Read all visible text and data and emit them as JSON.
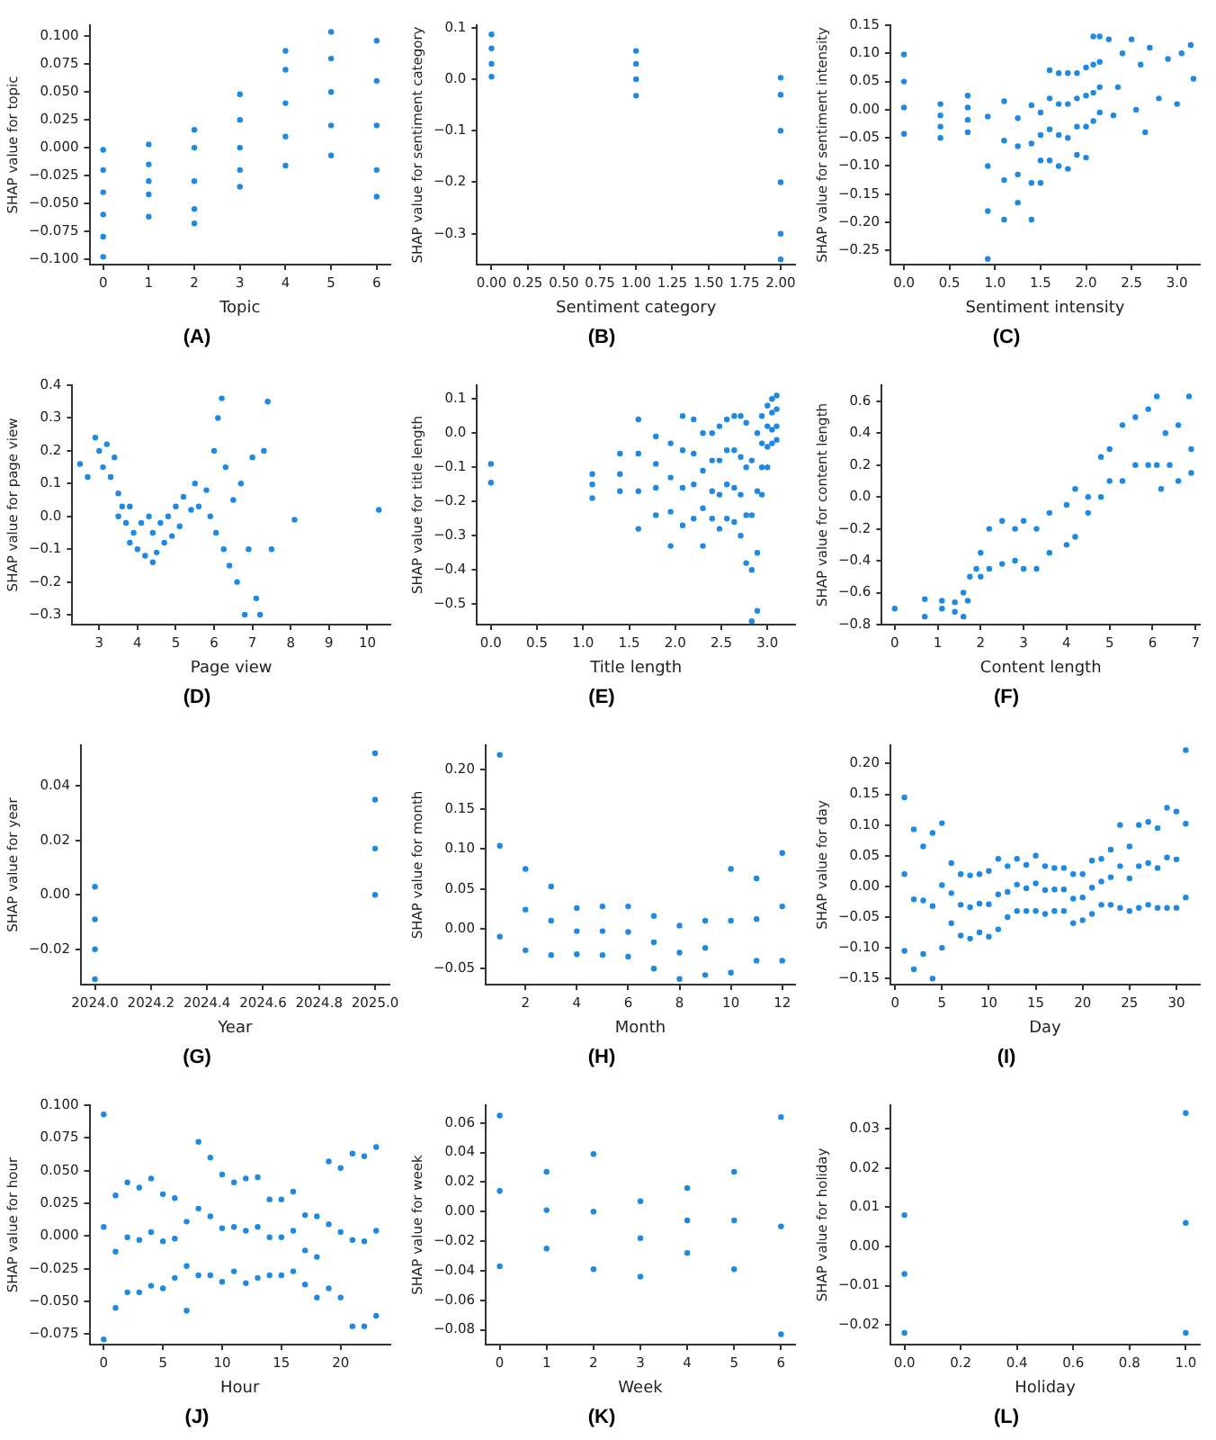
{
  "chart_data": [
    {
      "type": "scatter",
      "title": "(A)",
      "xlabel": "Topic",
      "ylabel": "SHAP value for topic",
      "color": "#1e88e5",
      "marker": "circle",
      "grid": false,
      "x": [
        0,
        0,
        0,
        0,
        0,
        0,
        1,
        1,
        1,
        1,
        1,
        2,
        2,
        2,
        2,
        2,
        3,
        3,
        3,
        3,
        3,
        4,
        4,
        4,
        4,
        4,
        5,
        5,
        5,
        5,
        5,
        6,
        6,
        6,
        6,
        6
      ],
      "values": [
        -0.098,
        -0.08,
        -0.06,
        -0.04,
        -0.02,
        -0.002,
        -0.062,
        -0.042,
        -0.03,
        -0.015,
        0.003,
        -0.068,
        -0.055,
        -0.03,
        0,
        0.016,
        -0.035,
        -0.02,
        0,
        0.025,
        0.048,
        -0.016,
        0.01,
        0.04,
        0.07,
        0.087,
        -0.007,
        0.02,
        0.05,
        0.08,
        0.104,
        -0.044,
        -0.02,
        0.02,
        0.06,
        0.096
      ],
      "xlim": [
        -0.3,
        6.3
      ],
      "xticks": [
        0,
        1,
        2,
        3,
        4,
        5,
        6
      ],
      "ylim": [
        -0.105,
        0.11
      ],
      "yticks": [
        {
          "value": -0.1,
          "label": "−0.100"
        },
        {
          "value": -0.075,
          "label": "−0.075"
        },
        {
          "value": -0.05,
          "label": "−0.050"
        },
        {
          "value": -0.025,
          "label": "−0.025"
        },
        {
          "value": 0,
          "label": "0.000"
        },
        {
          "value": 0.025,
          "label": "0.025"
        },
        {
          "value": 0.05,
          "label": "0.050"
        },
        {
          "value": 0.075,
          "label": "0.075"
        },
        {
          "value": 0.1,
          "label": "0.100"
        }
      ]
    },
    {
      "type": "scatter",
      "title": "(B)",
      "xlabel": "Sentiment category",
      "ylabel": "SHAP value for sentiment category",
      "color": "#1e88e5",
      "marker": "circle",
      "grid": false,
      "x": [
        0,
        0,
        0,
        0,
        1,
        1,
        1,
        1,
        2,
        2,
        2,
        2,
        2,
        2
      ],
      "values": [
        0.005,
        0.03,
        0.06,
        0.087,
        -0.032,
        0,
        0.03,
        0.055,
        -0.35,
        -0.3,
        -0.2,
        -0.1,
        -0.03,
        0.003
      ],
      "xlim": [
        -0.1,
        2.1
      ],
      "xticks": [
        {
          "value": 0,
          "label": "0.00"
        },
        {
          "value": 0.25,
          "label": "0.25"
        },
        {
          "value": 0.5,
          "label": "0.50"
        },
        {
          "value": 0.75,
          "label": "0.75"
        },
        {
          "value": 1,
          "label": "1.00"
        },
        {
          "value": 1.25,
          "label": "1.25"
        },
        {
          "value": 1.5,
          "label": "1.50"
        },
        {
          "value": 1.75,
          "label": "1.75"
        },
        {
          "value": 2,
          "label": "2.00"
        }
      ],
      "ylim": [
        -0.36,
        0.105
      ],
      "yticks": [
        {
          "value": -0.3,
          "label": "−0.3"
        },
        {
          "value": -0.2,
          "label": "−0.2"
        },
        {
          "value": -0.1,
          "label": "−0.1"
        },
        {
          "value": 0,
          "label": "0.0"
        },
        {
          "value": 0.1,
          "label": "0.1"
        }
      ]
    },
    {
      "type": "scatter",
      "title": "(C)",
      "xlabel": "Sentiment intensity",
      "ylabel": "SHAP value for sentiment intensity",
      "color": "#1e88e5",
      "marker": "circle",
      "grid": false,
      "x": [
        0,
        0,
        0,
        0,
        0.4,
        0.4,
        0.4,
        0.4,
        0.7,
        0.7,
        0.7,
        0.7,
        0.92,
        0.92,
        0.92,
        0.92,
        1.1,
        1.1,
        1.1,
        1.1,
        1.25,
        1.25,
        1.25,
        1.25,
        1.4,
        1.4,
        1.4,
        1.4,
        1.5,
        1.5,
        1.5,
        1.5,
        1.6,
        1.6,
        1.6,
        1.6,
        1.7,
        1.7,
        1.7,
        1.7,
        1.8,
        1.8,
        1.8,
        1.8,
        1.9,
        1.9,
        1.9,
        1.9,
        2.0,
        2.0,
        2.0,
        2.0,
        2.08,
        2.08,
        2.08,
        2.08,
        2.15,
        2.15,
        2.15,
        2.15,
        2.25,
        2.3,
        2.35,
        2.4,
        2.5,
        2.55,
        2.6,
        2.65,
        2.7,
        2.8,
        2.9,
        3.0,
        3.05,
        3.15,
        3.18
      ],
      "values": [
        -0.043,
        0.004,
        0.05,
        0.098,
        -0.05,
        -0.03,
        -0.01,
        0.01,
        -0.04,
        -0.018,
        0.004,
        0.025,
        -0.265,
        -0.18,
        -0.1,
        -0.012,
        -0.195,
        -0.125,
        -0.055,
        0.015,
        -0.165,
        -0.115,
        -0.065,
        -0.015,
        -0.195,
        -0.13,
        -0.06,
        0.008,
        -0.13,
        -0.09,
        -0.045,
        -0.005,
        -0.09,
        -0.035,
        0.02,
        0.07,
        -0.1,
        -0.045,
        0.01,
        0.065,
        -0.105,
        -0.05,
        0.01,
        0.065,
        -0.08,
        -0.03,
        0.02,
        0.065,
        -0.085,
        -0.03,
        0.025,
        0.075,
        -0.02,
        0.03,
        0.08,
        0.13,
        -0.005,
        0.04,
        0.085,
        0.13,
        0.125,
        -0.01,
        0.04,
        0.1,
        0.125,
        0.0,
        0.08,
        -0.04,
        0.11,
        0.02,
        0.09,
        0.01,
        0.1,
        0.115,
        0.055
      ],
      "xlim": [
        -0.15,
        3.25
      ],
      "xticks": [
        {
          "value": 0,
          "label": "0.0"
        },
        {
          "value": 0.5,
          "label": "0.5"
        },
        {
          "value": 1,
          "label": "1.0"
        },
        {
          "value": 1.5,
          "label": "1.5"
        },
        {
          "value": 2,
          "label": "2.0"
        },
        {
          "value": 2.5,
          "label": "2.5"
        },
        {
          "value": 3,
          "label": "3.0"
        }
      ],
      "ylim": [
        -0.275,
        0.15
      ],
      "yticks": [
        {
          "value": -0.25,
          "label": "−0.25"
        },
        {
          "value": -0.2,
          "label": "−0.20"
        },
        {
          "value": -0.15,
          "label": "−0.15"
        },
        {
          "value": -0.1,
          "label": "−0.10"
        },
        {
          "value": -0.05,
          "label": "−0.05"
        },
        {
          "value": 0,
          "label": "0.00"
        },
        {
          "value": 0.05,
          "label": "0.05"
        },
        {
          "value": 0.1,
          "label": "0.10"
        },
        {
          "value": 0.15,
          "label": "0.15"
        }
      ]
    },
    {
      "type": "scatter",
      "title": "(D)",
      "xlabel": "Page view",
      "ylabel": "SHAP value for page view",
      "color": "#1e88e5",
      "marker": "circle",
      "grid": false,
      "x": [
        2.5,
        2.7,
        2.9,
        3.0,
        3.1,
        3.2,
        3.3,
        3.4,
        3.5,
        3.5,
        3.6,
        3.7,
        3.8,
        3.8,
        3.9,
        4.0,
        4.1,
        4.2,
        4.3,
        4.4,
        4.4,
        4.5,
        4.6,
        4.7,
        4.8,
        4.9,
        5.0,
        5.1,
        5.2,
        5.4,
        5.5,
        5.6,
        5.8,
        5.9,
        6.0,
        6.05,
        6.1,
        6.2,
        6.25,
        6.3,
        6.4,
        6.5,
        6.6,
        6.7,
        6.8,
        6.9,
        7.0,
        7.1,
        7.2,
        7.3,
        7.4,
        7.5,
        8.1,
        10.3
      ],
      "values": [
        0.16,
        0.12,
        0.24,
        0.2,
        0.15,
        0.22,
        0.12,
        0.18,
        0.07,
        0.0,
        0.03,
        -0.02,
        0.03,
        -0.08,
        -0.05,
        -0.1,
        -0.02,
        -0.12,
        0.0,
        -0.14,
        -0.05,
        -0.11,
        -0.02,
        -0.08,
        0.0,
        -0.06,
        0.03,
        -0.03,
        0.06,
        0.02,
        0.1,
        0.03,
        0.08,
        0.0,
        0.2,
        -0.05,
        0.3,
        0.36,
        -0.1,
        0.15,
        -0.15,
        0.05,
        -0.2,
        0.1,
        -0.3,
        -0.1,
        0.18,
        -0.25,
        -0.3,
        0.2,
        0.35,
        -0.1,
        -0.01,
        0.02
      ],
      "xlim": [
        2.3,
        10.6
      ],
      "xticks": [
        3,
        4,
        5,
        6,
        7,
        8,
        9,
        10
      ],
      "ylim": [
        -0.33,
        0.4
      ],
      "yticks": [
        {
          "value": -0.3,
          "label": "−0.3"
        },
        {
          "value": -0.2,
          "label": "−0.2"
        },
        {
          "value": -0.1,
          "label": "−0.1"
        },
        {
          "value": 0,
          "label": "0.0"
        },
        {
          "value": 0.1,
          "label": "0.1"
        },
        {
          "value": 0.2,
          "label": "0.2"
        },
        {
          "value": 0.3,
          "label": "0.3"
        },
        {
          "value": 0.4,
          "label": "0.4"
        }
      ]
    },
    {
      "type": "scatter",
      "title": "(E)",
      "xlabel": "Title length",
      "ylabel": "SHAP value for title length",
      "color": "#1e88e5",
      "marker": "circle",
      "grid": false,
      "x": [
        0,
        0,
        1.1,
        1.1,
        1.1,
        1.4,
        1.4,
        1.4,
        1.6,
        1.6,
        1.6,
        1.6,
        1.79,
        1.79,
        1.79,
        1.79,
        1.95,
        1.95,
        1.95,
        1.95,
        2.08,
        2.08,
        2.08,
        2.08,
        2.2,
        2.2,
        2.2,
        2.2,
        2.3,
        2.3,
        2.3,
        2.3,
        2.4,
        2.4,
        2.4,
        2.4,
        2.48,
        2.48,
        2.48,
        2.48,
        2.56,
        2.56,
        2.56,
        2.56,
        2.64,
        2.64,
        2.64,
        2.64,
        2.71,
        2.71,
        2.71,
        2.71,
        2.77,
        2.77,
        2.77,
        2.77,
        2.83,
        2.83,
        2.83,
        2.83,
        2.89,
        2.89,
        2.89,
        2.89,
        2.94,
        2.94,
        2.94,
        2.94,
        3.0,
        3.0,
        3.0,
        3.0,
        3.05,
        3.05,
        3.05,
        3.05,
        3.1,
        3.1,
        3.1,
        3.1
      ],
      "values": [
        -0.09,
        -0.145,
        -0.12,
        -0.19,
        -0.15,
        -0.06,
        -0.17,
        -0.12,
        -0.28,
        -0.17,
        -0.06,
        0.04,
        -0.24,
        -0.16,
        -0.09,
        -0.01,
        -0.33,
        -0.23,
        -0.13,
        -0.03,
        -0.27,
        -0.16,
        -0.05,
        0.05,
        -0.25,
        -0.15,
        -0.06,
        0.04,
        -0.33,
        -0.22,
        -0.11,
        0.0,
        -0.25,
        -0.17,
        -0.08,
        0.0,
        -0.28,
        -0.18,
        -0.08,
        0.02,
        -0.25,
        -0.15,
        -0.05,
        0.04,
        -0.26,
        -0.16,
        -0.05,
        0.05,
        -0.3,
        -0.18,
        -0.07,
        0.05,
        -0.38,
        -0.24,
        -0.1,
        0.03,
        -0.55,
        -0.4,
        -0.24,
        -0.08,
        -0.52,
        -0.35,
        -0.17,
        0.0,
        -0.18,
        -0.1,
        -0.03,
        0.05,
        -0.1,
        -0.04,
        0.02,
        0.08,
        -0.03,
        0.01,
        0.06,
        0.1,
        -0.02,
        0.02,
        0.07,
        0.11
      ],
      "xlim": [
        -0.15,
        3.3
      ],
      "xticks": [
        {
          "value": 0,
          "label": "0.0"
        },
        {
          "value": 0.5,
          "label": "0.5"
        },
        {
          "value": 1,
          "label": "1.0"
        },
        {
          "value": 1.5,
          "label": "1.5"
        },
        {
          "value": 2,
          "label": "2.0"
        },
        {
          "value": 2.5,
          "label": "2.5"
        },
        {
          "value": 3,
          "label": "3.0"
        }
      ],
      "ylim": [
        -0.56,
        0.14
      ],
      "yticks": [
        {
          "value": -0.5,
          "label": "−0.5"
        },
        {
          "value": -0.4,
          "label": "−0.4"
        },
        {
          "value": -0.3,
          "label": "−0.3"
        },
        {
          "value": -0.2,
          "label": "−0.2"
        },
        {
          "value": -0.1,
          "label": "−0.1"
        },
        {
          "value": 0,
          "label": "0.0"
        },
        {
          "value": 0.1,
          "label": "0.1"
        }
      ]
    },
    {
      "type": "scatter",
      "title": "(F)",
      "xlabel": "Content length",
      "ylabel": "SHAP value for content length",
      "color": "#1e88e5",
      "marker": "circle",
      "grid": false,
      "x": [
        0,
        0.7,
        0.7,
        1.1,
        1.1,
        1.4,
        1.4,
        1.6,
        1.6,
        1.7,
        1.75,
        1.9,
        2.0,
        2.0,
        2.2,
        2.2,
        2.5,
        2.5,
        2.8,
        2.8,
        3.0,
        3.0,
        3.3,
        3.3,
        3.6,
        3.6,
        4.0,
        4.0,
        4.2,
        4.2,
        4.5,
        4.5,
        4.8,
        4.8,
        5.0,
        5.0,
        5.3,
        5.3,
        5.6,
        5.6,
        5.9,
        5.9,
        6.1,
        6.1,
        6.2,
        6.3,
        6.4,
        6.6,
        6.6,
        6.85,
        6.9,
        6.9
      ],
      "values": [
        -0.7,
        -0.75,
        -0.64,
        -0.7,
        -0.65,
        -0.72,
        -0.66,
        -0.75,
        -0.6,
        -0.65,
        -0.5,
        -0.45,
        -0.35,
        -0.5,
        -0.2,
        -0.45,
        -0.15,
        -0.42,
        -0.2,
        -0.4,
        -0.15,
        -0.45,
        -0.2,
        -0.45,
        -0.1,
        -0.35,
        -0.05,
        -0.3,
        0.05,
        -0.25,
        0.0,
        -0.1,
        0.25,
        0.0,
        0.3,
        0.1,
        0.45,
        0.1,
        0.5,
        0.2,
        0.55,
        0.2,
        0.63,
        0.2,
        0.05,
        0.4,
        0.2,
        0.45,
        0.1,
        0.63,
        0.3,
        0.15
      ],
      "xlim": [
        -0.3,
        7.1
      ],
      "xticks": [
        0,
        1,
        2,
        3,
        4,
        5,
        6,
        7
      ],
      "ylim": [
        -0.8,
        0.7
      ],
      "yticks": [
        {
          "value": -0.8,
          "label": "−0.8"
        },
        {
          "value": -0.6,
          "label": "−0.6"
        },
        {
          "value": -0.4,
          "label": "−0.4"
        },
        {
          "value": -0.2,
          "label": "−0.2"
        },
        {
          "value": 0,
          "label": "0.0"
        },
        {
          "value": 0.2,
          "label": "0.2"
        },
        {
          "value": 0.4,
          "label": "0.4"
        },
        {
          "value": 0.6,
          "label": "0.6"
        }
      ]
    },
    {
      "type": "scatter",
      "title": "(G)",
      "xlabel": "Year",
      "ylabel": "SHAP value for year",
      "color": "#1e88e5",
      "marker": "circle",
      "grid": false,
      "x": [
        2024,
        2024,
        2024,
        2024,
        2025,
        2025,
        2025,
        2025
      ],
      "values": [
        -0.031,
        -0.02,
        -0.009,
        0.003,
        0,
        0.017,
        0.035,
        0.052
      ],
      "xlim": [
        2023.95,
        2025.05
      ],
      "xticks": [
        {
          "value": 2024,
          "label": "2024.0"
        },
        {
          "value": 2024.2,
          "label": "2024.2"
        },
        {
          "value": 2024.4,
          "label": "2024.4"
        },
        {
          "value": 2024.6,
          "label": "2024.6"
        },
        {
          "value": 2024.8,
          "label": "2024.8"
        },
        {
          "value": 2025,
          "label": "2025.0"
        }
      ],
      "ylim": [
        -0.033,
        0.055
      ],
      "yticks": [
        {
          "value": -0.02,
          "label": "−0.02"
        },
        {
          "value": 0,
          "label": "0.00"
        },
        {
          "value": 0.02,
          "label": "0.02"
        },
        {
          "value": 0.04,
          "label": "0.04"
        }
      ]
    },
    {
      "type": "scatter",
      "title": "(H)",
      "xlabel": "Month",
      "ylabel": "SHAP value for month",
      "color": "#1e88e5",
      "marker": "circle",
      "grid": false,
      "x": [
        1,
        1,
        1,
        2,
        2,
        2,
        3,
        3,
        3,
        4,
        4,
        4,
        5,
        5,
        5,
        6,
        6,
        6,
        7,
        7,
        7,
        8,
        8,
        8,
        9,
        9,
        9,
        10,
        10,
        10,
        11,
        11,
        11,
        12,
        12,
        12
      ],
      "values": [
        -0.01,
        0.104,
        0.218,
        -0.027,
        0.024,
        0.075,
        -0.033,
        0.01,
        0.053,
        -0.032,
        -0.003,
        0.026,
        -0.033,
        -0.003,
        0.028,
        -0.035,
        -0.004,
        0.028,
        -0.05,
        -0.017,
        0.016,
        -0.063,
        -0.03,
        0.004,
        -0.058,
        -0.024,
        0.01,
        -0.055,
        0.01,
        0.075,
        -0.04,
        0.012,
        0.063,
        -0.04,
        0.028,
        0.095
      ],
      "xlim": [
        0.45,
        12.5
      ],
      "xticks": [
        2,
        4,
        6,
        8,
        10,
        12
      ],
      "ylim": [
        -0.07,
        0.23
      ],
      "yticks": [
        {
          "value": -0.05,
          "label": "−0.05"
        },
        {
          "value": 0,
          "label": "0.00"
        },
        {
          "value": 0.05,
          "label": "0.05"
        },
        {
          "value": 0.1,
          "label": "0.10"
        },
        {
          "value": 0.15,
          "label": "0.15"
        },
        {
          "value": 0.2,
          "label": "0.20"
        }
      ]
    },
    {
      "type": "scatter",
      "title": "(I)",
      "xlabel": "Day",
      "ylabel": "SHAP value for day",
      "color": "#1e88e5",
      "marker": "circle",
      "grid": false,
      "x": [
        1,
        1,
        1,
        2,
        2,
        2,
        3,
        3,
        3,
        4,
        4,
        4,
        5,
        5,
        5,
        6,
        6,
        6,
        7,
        7,
        7,
        8,
        8,
        8,
        9,
        9,
        9,
        10,
        10,
        10,
        11,
        11,
        11,
        12,
        12,
        12,
        13,
        13,
        13,
        14,
        14,
        14,
        15,
        15,
        15,
        16,
        16,
        16,
        17,
        17,
        17,
        18,
        18,
        18,
        19,
        19,
        19,
        20,
        20,
        20,
        21,
        21,
        21,
        22,
        22,
        22,
        23,
        23,
        23,
        24,
        24,
        24,
        25,
        25,
        25,
        26,
        26,
        26,
        27,
        27,
        27,
        28,
        28,
        28,
        29,
        29,
        29,
        30,
        30,
        30,
        31,
        31,
        31
      ],
      "values": [
        -0.105,
        0.02,
        0.145,
        -0.135,
        -0.021,
        0.093,
        -0.11,
        -0.023,
        0.065,
        -0.15,
        -0.032,
        0.087,
        -0.1,
        0.002,
        0.103,
        -0.06,
        -0.011,
        0.038,
        -0.08,
        -0.03,
        0.02,
        -0.085,
        -0.034,
        0.018,
        -0.075,
        -0.028,
        0.02,
        -0.082,
        -0.029,
        0.025,
        -0.07,
        -0.013,
        0.045,
        -0.05,
        -0.009,
        0.033,
        -0.04,
        0.003,
        0.045,
        -0.04,
        -0.003,
        0.035,
        -0.04,
        0.005,
        0.05,
        -0.045,
        -0.006,
        0.033,
        -0.04,
        -0.005,
        0.03,
        -0.04,
        -0.005,
        0.03,
        -0.06,
        -0.02,
        0.02,
        -0.055,
        -0.018,
        0.02,
        -0.045,
        -0.002,
        0.042,
        -0.03,
        0.008,
        0.045,
        -0.03,
        0.015,
        0.06,
        -0.035,
        0.033,
        0.1,
        -0.04,
        0.013,
        0.065,
        -0.035,
        0.033,
        0.1,
        -0.03,
        0.038,
        0.105,
        -0.035,
        0.03,
        0.095,
        -0.035,
        0.047,
        0.128,
        -0.035,
        0.044,
        0.122,
        -0.018,
        0.102,
        0.222
      ],
      "xlim": [
        -0.5,
        32.5
      ],
      "xticks": [
        0,
        5,
        10,
        15,
        20,
        25,
        30
      ],
      "ylim": [
        -0.16,
        0.23
      ],
      "yticks": [
        {
          "value": -0.15,
          "label": "−0.15"
        },
        {
          "value": -0.1,
          "label": "−0.10"
        },
        {
          "value": -0.05,
          "label": "−0.05"
        },
        {
          "value": 0,
          "label": "0.00"
        },
        {
          "value": 0.05,
          "label": "0.05"
        },
        {
          "value": 0.1,
          "label": "0.10"
        },
        {
          "value": 0.15,
          "label": "0.15"
        },
        {
          "value": 0.2,
          "label": "0.20"
        }
      ]
    },
    {
      "type": "scatter",
      "title": "(J)",
      "xlabel": "Hour",
      "ylabel": "SHAP value for hour",
      "color": "#1e88e5",
      "marker": "circle",
      "grid": false,
      "x": [
        0,
        0,
        0,
        1,
        1,
        1,
        2,
        2,
        2,
        3,
        3,
        3,
        4,
        4,
        4,
        5,
        5,
        5,
        6,
        6,
        6,
        7,
        7,
        7,
        8,
        8,
        8,
        9,
        9,
        9,
        10,
        10,
        10,
        11,
        11,
        11,
        12,
        12,
        12,
        13,
        13,
        13,
        14,
        14,
        14,
        15,
        15,
        15,
        16,
        16,
        16,
        17,
        17,
        17,
        18,
        18,
        18,
        19,
        19,
        19,
        20,
        20,
        20,
        21,
        21,
        21,
        22,
        22,
        22,
        23,
        23,
        23
      ],
      "values": [
        -0.079,
        0.007,
        0.093,
        -0.055,
        -0.012,
        0.031,
        -0.043,
        -0.001,
        0.041,
        -0.043,
        -0.003,
        0.037,
        -0.038,
        0.003,
        0.044,
        -0.04,
        -0.004,
        0.032,
        -0.032,
        -0.002,
        0.029,
        -0.057,
        -0.023,
        0.011,
        -0.03,
        0.021,
        0.072,
        -0.03,
        0.015,
        0.06,
        -0.035,
        0.006,
        0.047,
        -0.027,
        0.007,
        0.041,
        -0.036,
        0.004,
        0.044,
        -0.032,
        0.007,
        0.045,
        -0.03,
        -0.001,
        0.028,
        -0.03,
        -0.001,
        0.028,
        -0.027,
        0.004,
        0.034,
        -0.037,
        -0.011,
        0.016,
        -0.047,
        -0.016,
        0.015,
        -0.04,
        0.009,
        0.057,
        -0.047,
        0.003,
        0.052,
        -0.069,
        -0.003,
        0.063,
        -0.069,
        -0.004,
        0.061,
        -0.061,
        0.004,
        0.068
      ],
      "xlim": [
        -1.2,
        24.2
      ],
      "xticks": [
        0,
        5,
        10,
        15,
        20
      ],
      "ylim": [
        -0.083,
        0.1
      ],
      "yticks": [
        {
          "value": -0.075,
          "label": "−0.075"
        },
        {
          "value": -0.05,
          "label": "−0.050"
        },
        {
          "value": -0.025,
          "label": "−0.025"
        },
        {
          "value": 0,
          "label": "0.000"
        },
        {
          "value": 0.025,
          "label": "0.025"
        },
        {
          "value": 0.05,
          "label": "0.050"
        },
        {
          "value": 0.075,
          "label": "0.075"
        },
        {
          "value": 0.1,
          "label": "0.100"
        }
      ]
    },
    {
      "type": "scatter",
      "title": "(K)",
      "xlabel": "Week",
      "ylabel": "SHAP value for week",
      "color": "#1e88e5",
      "marker": "circle",
      "grid": false,
      "x": [
        0,
        0,
        0,
        1,
        1,
        1,
        2,
        2,
        2,
        3,
        3,
        3,
        4,
        4,
        4,
        5,
        5,
        5,
        6,
        6,
        6
      ],
      "values": [
        -0.037,
        0.014,
        0.065,
        -0.025,
        0.001,
        0.027,
        -0.039,
        0,
        0.039,
        -0.044,
        -0.018,
        0.007,
        -0.028,
        -0.006,
        0.016,
        -0.039,
        -0.006,
        0.027,
        -0.083,
        -0.01,
        0.064
      ],
      "xlim": [
        -0.3,
        6.3
      ],
      "xticks": [
        0,
        1,
        2,
        3,
        4,
        5,
        6
      ],
      "ylim": [
        -0.09,
        0.072
      ],
      "yticks": [
        {
          "value": -0.08,
          "label": "−0.08"
        },
        {
          "value": -0.06,
          "label": "−0.06"
        },
        {
          "value": -0.04,
          "label": "−0.04"
        },
        {
          "value": -0.02,
          "label": "−0.02"
        },
        {
          "value": 0,
          "label": "0.00"
        },
        {
          "value": 0.02,
          "label": "0.02"
        },
        {
          "value": 0.04,
          "label": "0.04"
        },
        {
          "value": 0.06,
          "label": "0.06"
        }
      ]
    },
    {
      "type": "scatter",
      "title": "(L)",
      "xlabel": "Holiday",
      "ylabel": "SHAP value for holiday",
      "color": "#1e88e5",
      "marker": "circle",
      "grid": false,
      "x": [
        0,
        0,
        0,
        1,
        1,
        1
      ],
      "values": [
        -0.022,
        -0.007,
        0.008,
        -0.022,
        0.006,
        0.034
      ],
      "xlim": [
        -0.05,
        1.05
      ],
      "xticks": [
        {
          "value": 0,
          "label": "0.0"
        },
        {
          "value": 0.2,
          "label": "0.2"
        },
        {
          "value": 0.4,
          "label": "0.4"
        },
        {
          "value": 0.6,
          "label": "0.6"
        },
        {
          "value": 0.8,
          "label": "0.8"
        },
        {
          "value": 1,
          "label": "1.0"
        }
      ],
      "ylim": [
        -0.025,
        0.036
      ],
      "yticks": [
        {
          "value": -0.02,
          "label": "−0.02"
        },
        {
          "value": -0.01,
          "label": "−0.01"
        },
        {
          "value": 0,
          "label": "0.00"
        },
        {
          "value": 0.01,
          "label": "0.01"
        },
        {
          "value": 0.02,
          "label": "0.02"
        },
        {
          "value": 0.03,
          "label": "0.03"
        }
      ]
    }
  ]
}
